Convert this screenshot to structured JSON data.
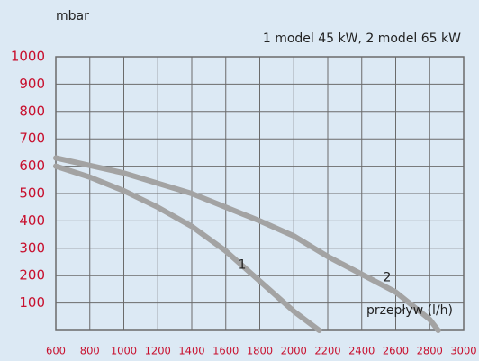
{
  "chart_data": {
    "type": "line",
    "subtitle": "1 model 45 kW, 2 model 65 kW",
    "y_label": "mbar",
    "x_label": "przepływ (l/h)",
    "xlim": [
      600,
      3000
    ],
    "xticks": [
      600,
      800,
      1000,
      1200,
      1400,
      1600,
      1800,
      2000,
      2200,
      2400,
      2600,
      2800,
      3000
    ],
    "ylim": [
      0,
      1000
    ],
    "yticks": [
      100,
      200,
      300,
      400,
      500,
      600,
      700,
      800,
      900,
      1000
    ],
    "grid": true,
    "series": [
      {
        "name": "1",
        "color": "#a3a3a3",
        "x": [
          600,
          800,
          1000,
          1200,
          1400,
          1600,
          1800,
          2000,
          2150
        ],
        "values": [
          600,
          560,
          510,
          450,
          380,
          290,
          180,
          70,
          0
        ]
      },
      {
        "name": "2",
        "color": "#a3a3a3",
        "x": [
          600,
          1000,
          1400,
          1800,
          2000,
          2200,
          2600,
          2800,
          2850
        ],
        "values": [
          630,
          575,
          500,
          400,
          345,
          270,
          140,
          40,
          0
        ]
      }
    ]
  }
}
